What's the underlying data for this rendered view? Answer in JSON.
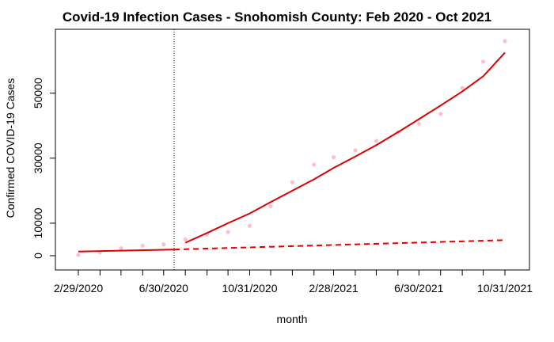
{
  "chart_data": {
    "type": "scatter",
    "title": "Covid-19 Infection Cases - Snohomish County: Feb 2020 - Oct 2021",
    "xlabel": "month",
    "ylabel": "Confirmed COVID-19 Cases",
    "x_ticks": [
      "2/29/2020",
      "6/30/2020",
      "10/31/2020",
      "2/28/2021",
      "6/30/2021",
      "10/31/2021"
    ],
    "y_ticks": [
      0,
      10000,
      30000,
      50000
    ],
    "x": [
      "2020-02-29",
      "2020-03-31",
      "2020-04-30",
      "2020-05-31",
      "2020-06-30",
      "2020-07-31",
      "2020-08-31",
      "2020-09-30",
      "2020-10-31",
      "2020-11-30",
      "2020-12-31",
      "2021-01-31",
      "2021-02-28",
      "2021-03-31",
      "2021-04-30",
      "2021-05-31",
      "2021-06-30",
      "2021-07-31",
      "2021-08-31",
      "2021-09-30",
      "2021-10-31"
    ],
    "xlim": [
      "2020-02-29",
      "2021-10-31"
    ],
    "ylim": [
      0,
      66000
    ],
    "intervention_date": "2020-07-15",
    "series": [
      {
        "role": "observed",
        "color": "#ffc0cb",
        "style": "points",
        "values": [
          200,
          1000,
          2300,
          3100,
          3500,
          5000,
          6500,
          7300,
          9200,
          15200,
          22600,
          28000,
          30300,
          32400,
          35300,
          38000,
          40600,
          43600,
          51600,
          59700,
          66000
        ]
      },
      {
        "role": "fitted-pre",
        "color": "#dd0000",
        "style": "solid",
        "x": [
          "2020-02-29",
          "2020-07-15"
        ],
        "values": [
          1300,
          1900
        ]
      },
      {
        "role": "fitted-post",
        "color": "#dd0000",
        "style": "solid",
        "x": [
          "2020-07-31",
          "2020-08-31",
          "2020-09-30",
          "2020-10-31",
          "2020-11-30",
          "2020-12-31",
          "2021-01-31",
          "2021-02-28",
          "2021-03-31",
          "2021-04-30",
          "2021-05-31",
          "2021-06-30",
          "2021-07-31",
          "2021-08-31",
          "2021-09-30",
          "2021-10-31"
        ],
        "values": [
          4000,
          7000,
          10000,
          13000,
          16500,
          20000,
          23500,
          27000,
          30500,
          34000,
          38000,
          42000,
          46200,
          50500,
          55200,
          62500
        ]
      },
      {
        "role": "counterfactual",
        "color": "#dd0000",
        "style": "dashed",
        "x": [
          "2020-07-15",
          "2021-10-31"
        ],
        "values": [
          1900,
          4800
        ]
      }
    ],
    "grid": false,
    "legend": "none"
  }
}
